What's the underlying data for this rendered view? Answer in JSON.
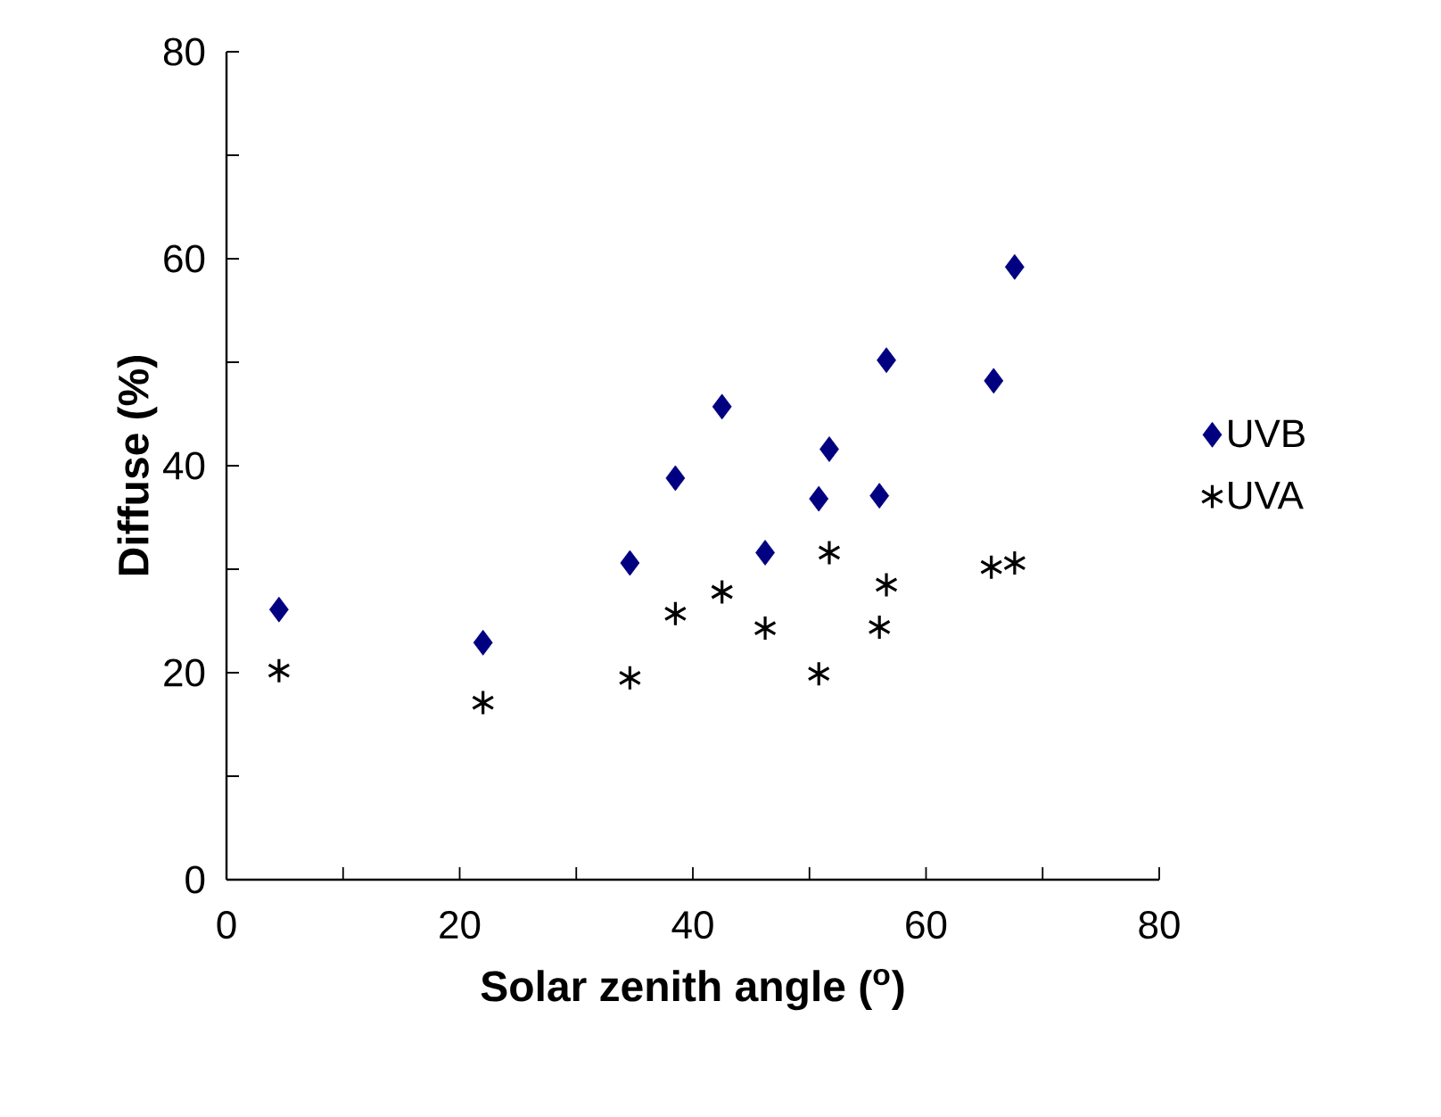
{
  "chart_data": {
    "type": "scatter",
    "xlabel": "Solar zenith angle ($^{o}$)",
    "ylabel": "Diffuse (%)",
    "xlim": [
      0,
      80
    ],
    "ylim": [
      0,
      80
    ],
    "xticks": [
      0,
      {
        "value": 10,
        "label": null
      },
      20,
      {
        "value": 30,
        "label": null
      },
      40,
      {
        "value": 50,
        "label": null
      },
      60,
      {
        "value": 70,
        "label": null
      },
      80
    ],
    "yticks": [
      0,
      {
        "value": 10,
        "label": null
      },
      20,
      {
        "value": 30,
        "label": null
      },
      40,
      {
        "value": 50,
        "label": null
      },
      60,
      {
        "value": 70,
        "label": null
      },
      80
    ],
    "grid": false,
    "legend": "right",
    "series": [
      {
        "name": "UVB",
        "color": "#000080",
        "marker": "diamond",
        "x": [
          4.5,
          22.0,
          34.6,
          38.5,
          42.5,
          46.2,
          50.8,
          51.7,
          56.0,
          56.6,
          65.8,
          67.6
        ],
        "values": [
          26.1,
          22.9,
          30.6,
          38.8,
          45.7,
          31.6,
          36.8,
          41.6,
          37.1,
          50.2,
          48.2,
          59.2
        ]
      },
      {
        "name": "UVA",
        "color": "#000000",
        "marker": "cross",
        "x": [
          4.5,
          22.0,
          34.6,
          38.5,
          42.5,
          46.2,
          50.8,
          51.7,
          56.0,
          56.6,
          65.6,
          67.6
        ],
        "values": [
          20.2,
          17.1,
          19.5,
          25.7,
          27.8,
          24.3,
          19.9,
          31.6,
          24.4,
          28.5,
          30.2,
          30.6
        ]
      }
    ]
  }
}
